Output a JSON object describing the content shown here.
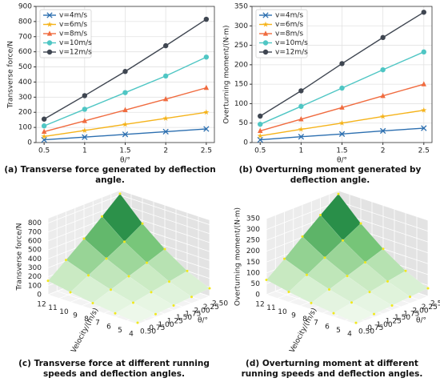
{
  "chart_data": [
    {
      "type": "line",
      "caption": "(a) Transverse force generated by deflection angle.",
      "xlabel": "θ/°",
      "ylabel": "Transverse force/N",
      "x": [
        0.5,
        1,
        1.5,
        2,
        2.5
      ],
      "xlim": [
        0.4,
        2.6
      ],
      "xticks": [
        0.5,
        1,
        1.5,
        2,
        2.5
      ],
      "ylim": [
        0,
        900
      ],
      "yticks": [
        0,
        100,
        200,
        300,
        400,
        500,
        600,
        700,
        800,
        900
      ],
      "grid": true,
      "legend": "upper-left",
      "series": [
        {
          "name": "v=4m/s",
          "color": "#2c6fb0",
          "marker": "x",
          "values": [
            18,
            36,
            54,
            72,
            90
          ]
        },
        {
          "name": "v=6m/s",
          "color": "#f5b31a",
          "marker": "star",
          "values": [
            40,
            80,
            120,
            160,
            200
          ]
        },
        {
          "name": "v=8m/s",
          "color": "#f06b3f",
          "marker": "triangle",
          "values": [
            72,
            143,
            215,
            287,
            362
          ]
        },
        {
          "name": "v=10m/s",
          "color": "#4fc6c4",
          "marker": "circle",
          "values": [
            110,
            220,
            330,
            440,
            565
          ]
        },
        {
          "name": "v=12m/s",
          "color": "#3f4651",
          "marker": "circle",
          "values": [
            155,
            310,
            470,
            640,
            815
          ]
        }
      ]
    },
    {
      "type": "line",
      "caption": "(b) Overturning moment generated by deflection angle.",
      "xlabel": "θ/°",
      "ylabel": "Overturning moment/(N·m)",
      "x": [
        0.5,
        1,
        1.5,
        2,
        2.5
      ],
      "xlim": [
        0.4,
        2.6
      ],
      "xticks": [
        0.5,
        1,
        1.5,
        2,
        2.5
      ],
      "ylim": [
        0,
        350
      ],
      "yticks": [
        0,
        50,
        100,
        150,
        200,
        250,
        300,
        350
      ],
      "grid": true,
      "legend": "upper-left",
      "series": [
        {
          "name": "v=4m/s",
          "color": "#2c6fb0",
          "marker": "x",
          "values": [
            7,
            15,
            22,
            30,
            37
          ]
        },
        {
          "name": "v=6m/s",
          "color": "#f5b31a",
          "marker": "star",
          "values": [
            17,
            34,
            50,
            67,
            83
          ]
        },
        {
          "name": "v=8m/s",
          "color": "#f06b3f",
          "marker": "triangle",
          "values": [
            30,
            60,
            90,
            120,
            150
          ]
        },
        {
          "name": "v=10m/s",
          "color": "#4fc6c4",
          "marker": "circle",
          "values": [
            47,
            93,
            140,
            187,
            233
          ]
        },
        {
          "name": "v=12m/s",
          "color": "#3f4651",
          "marker": "circle",
          "values": [
            68,
            133,
            203,
            270,
            335
          ]
        }
      ]
    },
    {
      "type": "surface3d",
      "caption": "(c) Transverse force at different running speeds and deflection angles.",
      "zlabel": "Transverse force/N",
      "vlabel": "Velocity/(m/s)",
      "thetalabel": "θ/°",
      "velocity": [
        4,
        6,
        8,
        10,
        12
      ],
      "theta": [
        0.5,
        1,
        1.5,
        2,
        2.5
      ],
      "z": [
        [
          18,
          36,
          54,
          72,
          90
        ],
        [
          40,
          80,
          120,
          160,
          200
        ],
        [
          72,
          143,
          215,
          287,
          362
        ],
        [
          110,
          220,
          330,
          440,
          565
        ],
        [
          155,
          310,
          470,
          640,
          815
        ]
      ],
      "vlim": [
        4,
        12
      ],
      "vticks": [
        4,
        5,
        6,
        7,
        8,
        9,
        10,
        11,
        12
      ],
      "thetalim": [
        0.5,
        2.5
      ],
      "thetaticks": [
        {
          "value": 0.5,
          "label": "0.50"
        },
        {
          "value": 0.75,
          "label": "0.75"
        },
        {
          "value": 1,
          "label": "1.00"
        },
        {
          "value": 1.25,
          "label": "1.25"
        },
        {
          "value": 1.5,
          "label": "1.50"
        },
        {
          "value": 1.75,
          "label": "1.75"
        },
        {
          "value": 2,
          "label": "2.00"
        },
        {
          "value": 2.25,
          "label": "2.25"
        },
        {
          "value": 2.5,
          "label": "2.50"
        }
      ],
      "zlim": [
        0,
        850
      ],
      "zticks": [
        0,
        100,
        200,
        300,
        400,
        500,
        600,
        700,
        800
      ],
      "colormap": [
        "#f7fcf5",
        "#c7e9c0",
        "#74c476",
        "#238b45",
        "#00441b"
      ],
      "point_color": "#f2e81c"
    },
    {
      "type": "surface3d",
      "caption": "(d) Overturning moment at different running speeds and deflection angles.",
      "zlabel": "Overturning moment/(N·m)",
      "vlabel": "Velocity/(m/s)",
      "thetalabel": "θ/°",
      "velocity": [
        4,
        6,
        8,
        10,
        12
      ],
      "theta": [
        0.5,
        1,
        1.5,
        2,
        2.5
      ],
      "z": [
        [
          7,
          15,
          22,
          30,
          37
        ],
        [
          17,
          34,
          50,
          67,
          83
        ],
        [
          30,
          60,
          90,
          120,
          150
        ],
        [
          47,
          93,
          140,
          187,
          233
        ],
        [
          68,
          133,
          203,
          270,
          335
        ]
      ],
      "vlim": [
        4,
        12
      ],
      "vticks": [
        4,
        5,
        6,
        7,
        8,
        9,
        10,
        11,
        12
      ],
      "thetalim": [
        0.5,
        2.5
      ],
      "thetaticks": [
        {
          "value": 0.5,
          "label": "0.50"
        },
        {
          "value": 0.75,
          "label": "0.75"
        },
        {
          "value": 1,
          "label": "1.00"
        },
        {
          "value": 1.25,
          "label": "1.25"
        },
        {
          "value": 1.5,
          "label": "1.50"
        },
        {
          "value": 1.75,
          "label": "1.75"
        },
        {
          "value": 2,
          "label": "2.00"
        },
        {
          "value": 2.25,
          "label": "2.25"
        },
        {
          "value": 2.5,
          "label": "2.50"
        }
      ],
      "zlim": [
        0,
        350
      ],
      "zticks": [
        0,
        50,
        100,
        150,
        200,
        250,
        300,
        350
      ],
      "colormap": [
        "#f7fcf5",
        "#c7e9c0",
        "#74c476",
        "#238b45",
        "#00441b"
      ],
      "point_color": "#f2e81c"
    }
  ]
}
